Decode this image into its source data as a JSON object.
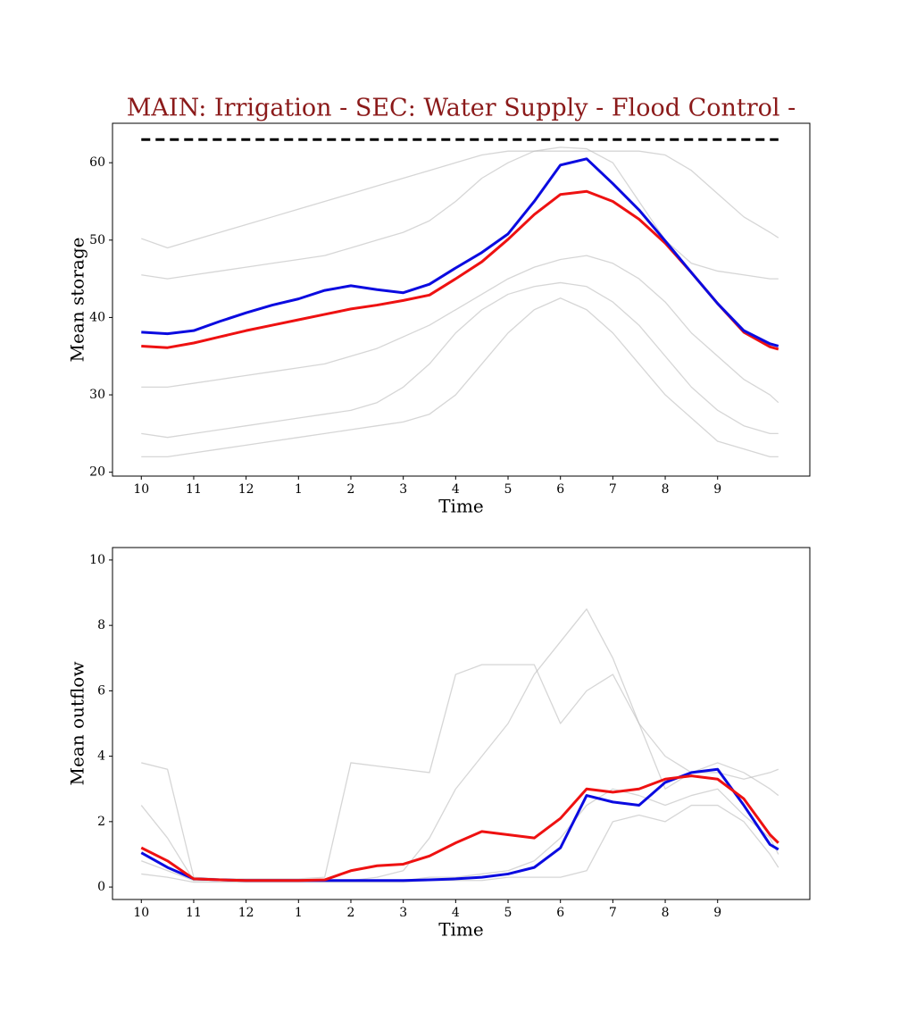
{
  "chart_data": [
    {
      "type": "line",
      "title": "MAIN: Irrigation - SEC: Water Supply - Flood Control -",
      "x_label": "Time",
      "y_label": "Mean storage",
      "x": [
        0,
        0.5,
        1,
        1.5,
        2,
        2.5,
        3,
        3.5,
        4,
        4.5,
        5,
        5.5,
        6,
        6.5,
        7,
        7.5,
        8,
        8.5,
        9,
        9.5,
        10,
        10.5,
        11,
        11.5,
        12,
        12.16
      ],
      "xlim": [
        -0.55,
        12.76
      ],
      "xticks": [
        {
          "value": 0,
          "label": "10"
        },
        {
          "value": 1,
          "label": "11"
        },
        {
          "value": 2,
          "label": "12"
        },
        {
          "value": 3,
          "label": "1"
        },
        {
          "value": 4,
          "label": "2"
        },
        {
          "value": 5,
          "label": "3"
        },
        {
          "value": 6,
          "label": "4"
        },
        {
          "value": 7,
          "label": "5"
        },
        {
          "value": 8,
          "label": "6"
        },
        {
          "value": 9,
          "label": "7"
        },
        {
          "value": 10,
          "label": "8"
        },
        {
          "value": 11,
          "label": "9"
        }
      ],
      "ylim": [
        19.5,
        65.1
      ],
      "yticks": [
        20,
        30,
        40,
        50,
        60
      ],
      "hline": {
        "value": 63,
        "color": "#000000",
        "dashed": true
      },
      "series": [
        {
          "color": "#bbbbbb",
          "values": [
            50.2,
            49,
            50,
            51,
            52,
            53,
            54,
            55,
            56,
            57,
            58,
            59,
            60,
            61,
            61.5,
            61.5,
            61.5,
            61.5,
            61.5,
            61.5,
            61,
            59,
            56,
            53,
            51,
            50.3
          ]
        },
        {
          "color": "#bbbbbb",
          "values": [
            45.5,
            45,
            45.5,
            46,
            46.5,
            47,
            47.5,
            48,
            49,
            50,
            51,
            52.5,
            55,
            58,
            60,
            61.5,
            62,
            61.8,
            60,
            55,
            50,
            47,
            46,
            45.5,
            45,
            45
          ]
        },
        {
          "color": "#bbbbbb",
          "values": [
            31,
            31,
            31.5,
            32,
            32.5,
            33,
            33.5,
            34,
            35,
            36,
            37.5,
            39,
            41,
            43,
            45,
            46.5,
            47.5,
            48,
            47,
            45,
            42,
            38,
            35,
            32,
            30,
            29
          ]
        },
        {
          "color": "#bbbbbb",
          "values": [
            25,
            24.5,
            25,
            25.5,
            26,
            26.5,
            27,
            27.5,
            28,
            29,
            31,
            34,
            38,
            41,
            43,
            44,
            44.5,
            44,
            42,
            39,
            35,
            31,
            28,
            26,
            25,
            25
          ]
        },
        {
          "color": "#bbbbbb",
          "values": [
            22,
            22,
            22.5,
            23,
            23.5,
            24,
            24.5,
            25,
            25.5,
            26,
            26.5,
            27.5,
            30,
            34,
            38,
            41,
            42.5,
            41,
            38,
            34,
            30,
            27,
            24,
            23,
            22,
            22
          ]
        },
        {
          "color": "#ee1111",
          "values": [
            36.3,
            36.1,
            36.7,
            37.5,
            38.3,
            39.0,
            39.7,
            40.4,
            41.1,
            41.6,
            42.2,
            42.9,
            45.0,
            47.2,
            50.1,
            53.3,
            55.9,
            56.3,
            55.0,
            52.7,
            49.6,
            45.8,
            41.8,
            38.1,
            36.2,
            35.9
          ]
        },
        {
          "color": "#0b0be0",
          "values": [
            38.1,
            37.9,
            38.3,
            39.5,
            40.6,
            41.6,
            42.4,
            43.5,
            44.1,
            43.6,
            43.2,
            44.3,
            46.4,
            48.4,
            50.8,
            55.0,
            59.7,
            60.5,
            57.3,
            53.9,
            49.9,
            45.8,
            41.8,
            38.3,
            36.6,
            36.3
          ]
        }
      ]
    },
    {
      "type": "line",
      "x_label": "Time",
      "y_label": "Mean outflow",
      "x": [
        0,
        0.5,
        1,
        1.5,
        2,
        2.5,
        3,
        3.5,
        4,
        4.5,
        5,
        5.5,
        6,
        6.5,
        7,
        7.5,
        8,
        8.5,
        9,
        9.5,
        10,
        10.5,
        11,
        11.5,
        12,
        12.16
      ],
      "xlim": [
        -0.55,
        12.76
      ],
      "xticks": [
        {
          "value": 0,
          "label": "10"
        },
        {
          "value": 1,
          "label": "11"
        },
        {
          "value": 2,
          "label": "12"
        },
        {
          "value": 3,
          "label": "1"
        },
        {
          "value": 4,
          "label": "2"
        },
        {
          "value": 5,
          "label": "3"
        },
        {
          "value": 6,
          "label": "4"
        },
        {
          "value": 7,
          "label": "5"
        },
        {
          "value": 8,
          "label": "6"
        },
        {
          "value": 9,
          "label": "7"
        },
        {
          "value": 10,
          "label": "8"
        },
        {
          "value": 11,
          "label": "9"
        }
      ],
      "ylim": [
        -0.38,
        10.38
      ],
      "yticks": [
        0,
        2,
        4,
        6,
        8,
        10
      ],
      "series": [
        {
          "color": "#bbbbbb",
          "values": [
            3.8,
            3.6,
            0.3,
            0.25,
            0.25,
            0.25,
            0.25,
            0.3,
            3.8,
            3.7,
            3.6,
            3.5,
            6.5,
            6.8,
            6.8,
            6.8,
            5,
            6,
            6.5,
            5,
            3,
            3.5,
            3.5,
            3.3,
            3.5,
            3.6
          ]
        },
        {
          "color": "#bbbbbb",
          "values": [
            2.5,
            1.5,
            0.2,
            0.2,
            0.2,
            0.2,
            0.2,
            0.2,
            0.2,
            0.3,
            0.5,
            1.5,
            3,
            4,
            5,
            6.5,
            7.5,
            8.5,
            7,
            5,
            4,
            3.5,
            3.8,
            3.5,
            3,
            2.8
          ]
        },
        {
          "color": "#bbbbbb",
          "values": [
            0.8,
            0.5,
            0.2,
            0.2,
            0.2,
            0.2,
            0.2,
            0.2,
            0.2,
            0.2,
            0.2,
            0.3,
            0.3,
            0.4,
            0.5,
            0.8,
            1.5,
            2.5,
            3,
            2.8,
            2.5,
            2.8,
            3,
            2.2,
            1.5,
            1
          ]
        },
        {
          "color": "#bbbbbb",
          "values": [
            0.4,
            0.3,
            0.15,
            0.15,
            0.15,
            0.15,
            0.15,
            0.15,
            0.15,
            0.15,
            0.15,
            0.2,
            0.2,
            0.2,
            0.3,
            0.3,
            0.3,
            0.5,
            2,
            2.2,
            2,
            2.5,
            2.5,
            2,
            1,
            0.6
          ]
        },
        {
          "color": "#0b0be0",
          "values": [
            1.05,
            0.6,
            0.25,
            0.22,
            0.2,
            0.2,
            0.2,
            0.2,
            0.2,
            0.2,
            0.2,
            0.22,
            0.25,
            0.3,
            0.4,
            0.6,
            1.2,
            2.8,
            2.6,
            2.5,
            3.2,
            3.5,
            3.6,
            2.5,
            1.3,
            1.15
          ]
        },
        {
          "color": "#ee1111",
          "values": [
            1.2,
            0.8,
            0.25,
            0.22,
            0.2,
            0.2,
            0.2,
            0.22,
            0.5,
            0.65,
            0.7,
            0.95,
            1.35,
            1.7,
            1.6,
            1.5,
            2.1,
            3.0,
            2.9,
            3.0,
            3.3,
            3.4,
            3.3,
            2.7,
            1.6,
            1.35
          ]
        }
      ]
    }
  ]
}
